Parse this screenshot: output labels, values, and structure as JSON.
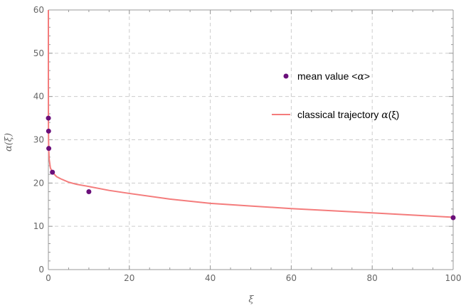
{
  "chart_data": {
    "type": "scatter",
    "xlabel": "ξ",
    "ylabel": "α(ξ)",
    "xlim": [
      0,
      100
    ],
    "ylim": [
      0,
      60
    ],
    "x_ticks": [
      0,
      20,
      40,
      60,
      80,
      100
    ],
    "y_ticks": [
      0,
      10,
      20,
      30,
      40,
      50,
      60
    ],
    "grid": true,
    "legend_position": "right",
    "colors": {
      "points": "#6a0f7a",
      "curve": "#f47c7c",
      "grid": "#cccccc",
      "axis": "#999999"
    },
    "series": [
      {
        "name": "mean value <α>",
        "kind": "points",
        "x": [
          0.01,
          0.05,
          0.1,
          1,
          10,
          100
        ],
        "y": [
          35,
          32,
          28,
          22.5,
          18,
          12
        ]
      },
      {
        "name": "classical trajectory α(ξ)",
        "kind": "line",
        "x": [
          0.0005,
          0.001,
          0.002,
          0.005,
          0.01,
          0.02,
          0.05,
          0.1,
          0.2,
          0.5,
          1,
          2,
          3,
          5,
          7,
          10,
          15,
          20,
          30,
          40,
          50,
          60,
          70,
          80,
          90,
          100
        ],
        "y": [
          60,
          55,
          49,
          42,
          38,
          34,
          30,
          27.5,
          25.5,
          23.5,
          22.5,
          21.5,
          21,
          20.2,
          19.7,
          19.2,
          18.3,
          17.6,
          16.3,
          15.3,
          14.7,
          14.1,
          13.6,
          13.1,
          12.6,
          12.1
        ]
      }
    ],
    "legend": [
      {
        "label": "mean value <",
        "label_italic": "α",
        "label_tail": ">"
      },
      {
        "label": "classical trajectory ",
        "label_italic": "α",
        "label_tail": "(ξ)"
      }
    ]
  }
}
